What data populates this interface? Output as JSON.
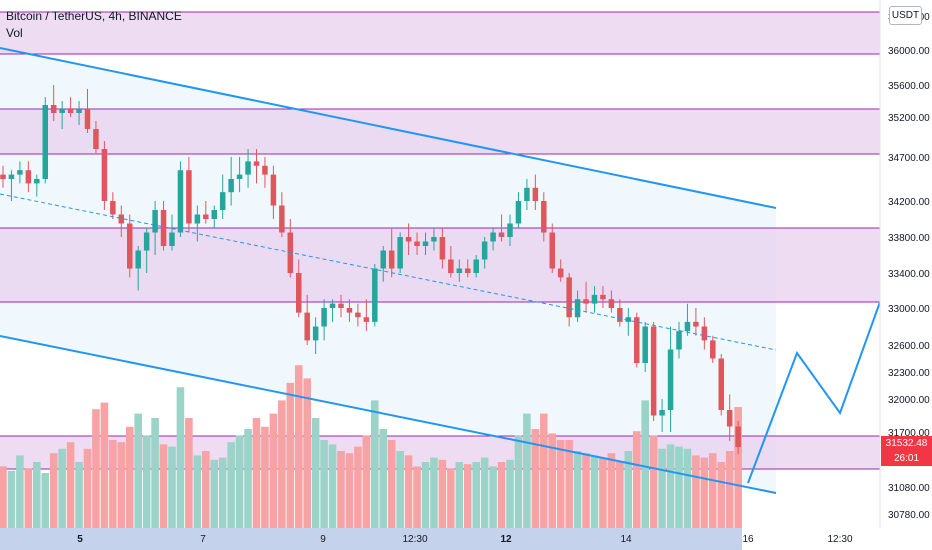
{
  "header": {
    "title": "Bitcoin / TetherUS, 4h, BINANCE",
    "vol_label": "Vol",
    "currency_button": "USDT"
  },
  "last_price": {
    "value": "31532.48",
    "countdown": "26:01"
  },
  "colors": {
    "up": "#26a69a",
    "down": "#e0565d",
    "vol_up": "#9bd3c9",
    "vol_down": "#f7a3a6",
    "channel_line": "#2196f3",
    "zone_fill": "#e8d1ee",
    "zone_border": "#9c27b0",
    "channel_fill": "#e3f2fd"
  },
  "chart_data": {
    "type": "candlestick",
    "symbol": "Bitcoin / TetherUS",
    "interval": "4h",
    "exchange": "BINANCE",
    "price_ticks": [
      "36000.00",
      "35600.00",
      "35200.00",
      "34700.00",
      "34200.00",
      "33800.00",
      "33400.00",
      "33000.00",
      "32600.00",
      "32300.00",
      "32000.00",
      "31700.00",
      "31080.00",
      "30780.00"
    ],
    "time_ticks": [
      "5",
      "7",
      "9",
      "12:30",
      "12",
      "14",
      "16",
      "12:30"
    ],
    "ylim": [
      30600,
      36400
    ],
    "candles": [
      [
        34500,
        34600,
        34350,
        34450
      ],
      [
        34450,
        34550,
        34200,
        34500
      ],
      [
        34500,
        34650,
        34400,
        34550
      ],
      [
        34550,
        34650,
        34300,
        34400
      ],
      [
        34400,
        34500,
        34250,
        34450
      ],
      [
        34450,
        35450,
        34400,
        35350
      ],
      [
        35350,
        35600,
        35150,
        35250
      ],
      [
        35250,
        35400,
        35050,
        35300
      ],
      [
        35300,
        35450,
        35200,
        35250
      ],
      [
        35250,
        35400,
        35100,
        35300
      ],
      [
        35300,
        35550,
        35000,
        35050
      ],
      [
        35050,
        35150,
        34750,
        34800
      ],
      [
        34800,
        34900,
        34100,
        34200
      ],
      [
        34200,
        34300,
        34000,
        34050
      ],
      [
        34050,
        34150,
        33800,
        33950
      ],
      [
        33950,
        34050,
        33350,
        33450
      ],
      [
        33450,
        33700,
        33200,
        33650
      ],
      [
        33650,
        33900,
        33400,
        33850
      ],
      [
        33850,
        34200,
        33600,
        34100
      ],
      [
        34100,
        34200,
        33650,
        33700
      ],
      [
        33700,
        34050,
        33650,
        33850
      ],
      [
        33850,
        34650,
        33800,
        34550
      ],
      [
        34550,
        34700,
        33850,
        33950
      ],
      [
        33950,
        34150,
        33750,
        34050
      ],
      [
        34050,
        34200,
        33950,
        34000
      ],
      [
        34000,
        34150,
        33900,
        34100
      ],
      [
        34100,
        34500,
        34000,
        34300
      ],
      [
        34300,
        34700,
        34150,
        34450
      ],
      [
        34450,
        34700,
        34300,
        34500
      ],
      [
        34500,
        34800,
        34350,
        34650
      ],
      [
        34650,
        34800,
        34400,
        34600
      ],
      [
        34600,
        34700,
        34350,
        34500
      ],
      [
        34500,
        34600,
        34000,
        34150
      ],
      [
        34150,
        34300,
        33800,
        33850
      ],
      [
        33850,
        34000,
        33350,
        33400
      ],
      [
        33400,
        33550,
        32900,
        32950
      ],
      [
        32950,
        33150,
        32600,
        32650
      ],
      [
        32650,
        32900,
        32500,
        32800
      ],
      [
        32800,
        33100,
        32650,
        33000
      ],
      [
        33000,
        33100,
        32850,
        33050
      ],
      [
        33050,
        33150,
        32900,
        33000
      ],
      [
        33000,
        33100,
        32850,
        32950
      ],
      [
        32950,
        33050,
        32800,
        32900
      ],
      [
        32900,
        33100,
        32750,
        32850
      ],
      [
        32850,
        33500,
        32800,
        33450
      ],
      [
        33450,
        33700,
        33300,
        33650
      ],
      [
        33650,
        33900,
        33350,
        33450
      ],
      [
        33450,
        33850,
        33400,
        33800
      ],
      [
        33800,
        33950,
        33600,
        33750
      ],
      [
        33750,
        33850,
        33600,
        33700
      ],
      [
        33700,
        33850,
        33600,
        33750
      ],
      [
        33750,
        33900,
        33650,
        33800
      ],
      [
        33800,
        33900,
        33450,
        33550
      ],
      [
        33550,
        33700,
        33350,
        33400
      ],
      [
        33400,
        33550,
        33300,
        33450
      ],
      [
        33450,
        33550,
        33350,
        33400
      ],
      [
        33400,
        33600,
        33350,
        33550
      ],
      [
        33550,
        33800,
        33450,
        33750
      ],
      [
        33750,
        33900,
        33650,
        33850
      ],
      [
        33850,
        34050,
        33750,
        33800
      ],
      [
        33800,
        34050,
        33700,
        33950
      ],
      [
        33950,
        34300,
        33900,
        34200
      ],
      [
        34200,
        34450,
        34100,
        34350
      ],
      [
        34350,
        34500,
        34100,
        34200
      ],
      [
        34200,
        34300,
        33750,
        33850
      ],
      [
        33850,
        33950,
        33400,
        33450
      ],
      [
        33450,
        33550,
        33300,
        33350
      ],
      [
        33350,
        33400,
        32800,
        32900
      ],
      [
        32900,
        33200,
        32850,
        33100
      ],
      [
        33100,
        33300,
        32950,
        33050
      ],
      [
        33050,
        33250,
        32950,
        33150
      ],
      [
        33150,
        33250,
        33000,
        33100
      ],
      [
        33100,
        33200,
        32950,
        33000
      ],
      [
        33000,
        33100,
        32800,
        32850
      ],
      [
        32850,
        33000,
        32700,
        32900
      ],
      [
        32900,
        32950,
        32350,
        32400
      ],
      [
        32400,
        32850,
        32300,
        32800
      ],
      [
        32800,
        32850,
        31800,
        31850
      ],
      [
        31850,
        32000,
        31700,
        31900
      ],
      [
        31900,
        32800,
        31700,
        32550
      ],
      [
        32550,
        32850,
        32450,
        32750
      ],
      [
        32750,
        33050,
        32700,
        32850
      ],
      [
        32850,
        33000,
        32700,
        32800
      ],
      [
        32800,
        32900,
        32550,
        32650
      ],
      [
        32650,
        32700,
        32400,
        32450
      ],
      [
        32450,
        32500,
        31850,
        31900
      ],
      [
        31900,
        32050,
        31600,
        31750
      ],
      [
        31750,
        31800,
        31450,
        31530
      ]
    ],
    "volumes": [
      0.28,
      0.26,
      0.33,
      0.27,
      0.3,
      0.25,
      0.34,
      0.36,
      0.39,
      0.3,
      0.36,
      0.54,
      0.57,
      0.4,
      0.39,
      0.46,
      0.52,
      0.42,
      0.5,
      0.38,
      0.37,
      0.64,
      0.5,
      0.33,
      0.35,
      0.31,
      0.32,
      0.39,
      0.42,
      0.45,
      0.5,
      0.46,
      0.52,
      0.58,
      0.66,
      0.74,
      0.68,
      0.5,
      0.4,
      0.38,
      0.35,
      0.34,
      0.37,
      0.42,
      0.58,
      0.45,
      0.4,
      0.35,
      0.33,
      0.28,
      0.3,
      0.32,
      0.31,
      0.27,
      0.3,
      0.29,
      0.3,
      0.32,
      0.28,
      0.3,
      0.31,
      0.42,
      0.52,
      0.45,
      0.52,
      0.43,
      0.4,
      0.4,
      0.35,
      0.34,
      0.33,
      0.32,
      0.34,
      0.3,
      0.35,
      0.44,
      0.58,
      0.42,
      0.36,
      0.38,
      0.37,
      0.36,
      0.33,
      0.32,
      0.34,
      0.3,
      0.35,
      0.55
    ]
  }
}
